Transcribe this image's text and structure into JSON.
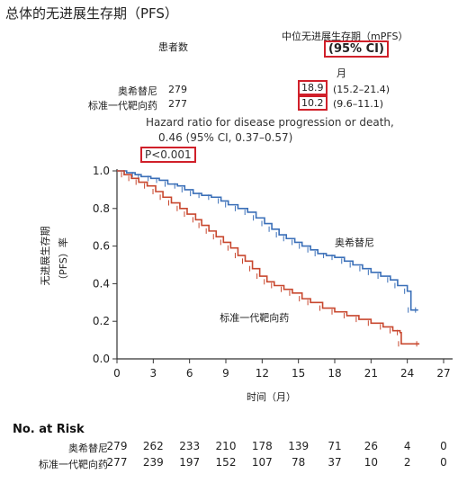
{
  "title": "总体的无进展生存期（PFS）",
  "header": {
    "patients_label": "患者数",
    "median_label": "中位无进展生存期（mPFS）",
    "ci_label": "(95% CI)",
    "month_unit": "月"
  },
  "arms": [
    {
      "name": "奥希替尼",
      "n": "279",
      "median": "18.9",
      "ci": "(15.2–21.4)"
    },
    {
      "name": "标准一代靶向药",
      "n": "277",
      "median": "10.2",
      "ci": "(9.6–11.1)"
    }
  ],
  "hazard": {
    "line1": "Hazard ratio for disease progression or death,",
    "line2": "0.46 (95% CI, 0.37–0.57)",
    "p_value": "P<0.001"
  },
  "chart_data": {
    "type": "line",
    "xlabel": "时间（月）",
    "ylabel_line1": "无进展生存期",
    "ylabel_line2": "（PFS）率",
    "xlim": [
      0,
      27
    ],
    "ylim": [
      0.0,
      1.0
    ],
    "x_ticks": [
      "0",
      "3",
      "6",
      "9",
      "12",
      "15",
      "18",
      "21",
      "24",
      "27"
    ],
    "y_ticks": [
      "0.0",
      "0.2",
      "0.4",
      "0.6",
      "0.8",
      "1.0"
    ],
    "series": [
      {
        "name": "奥希替尼",
        "color": "#3a6fb8",
        "points": [
          [
            0,
            1.0
          ],
          [
            0.8,
            0.99
          ],
          [
            1.5,
            0.98
          ],
          [
            2,
            0.97
          ],
          [
            2.8,
            0.96
          ],
          [
            3.5,
            0.95
          ],
          [
            4.2,
            0.93
          ],
          [
            5,
            0.92
          ],
          [
            5.6,
            0.9
          ],
          [
            6.3,
            0.88
          ],
          [
            7,
            0.87
          ],
          [
            7.8,
            0.86
          ],
          [
            8.6,
            0.84
          ],
          [
            9.2,
            0.82
          ],
          [
            10,
            0.8
          ],
          [
            10.8,
            0.78
          ],
          [
            11.5,
            0.75
          ],
          [
            12.2,
            0.72
          ],
          [
            12.8,
            0.69
          ],
          [
            13.4,
            0.66
          ],
          [
            14,
            0.64
          ],
          [
            14.7,
            0.62
          ],
          [
            15.3,
            0.6
          ],
          [
            16,
            0.58
          ],
          [
            16.6,
            0.56
          ],
          [
            17.3,
            0.55
          ],
          [
            18,
            0.54
          ],
          [
            18.8,
            0.52
          ],
          [
            19.5,
            0.5
          ],
          [
            20.3,
            0.48
          ],
          [
            21,
            0.46
          ],
          [
            21.8,
            0.44
          ],
          [
            22.6,
            0.42
          ],
          [
            23.2,
            0.39
          ],
          [
            24,
            0.36
          ],
          [
            24.3,
            0.26
          ],
          [
            24.9,
            0.26
          ]
        ]
      },
      {
        "name": "标准一代靶向药",
        "color": "#c8472e",
        "points": [
          [
            0,
            1.0
          ],
          [
            0.6,
            0.98
          ],
          [
            1.2,
            0.96
          ],
          [
            1.8,
            0.94
          ],
          [
            2.5,
            0.92
          ],
          [
            3.2,
            0.89
          ],
          [
            3.8,
            0.86
          ],
          [
            4.5,
            0.83
          ],
          [
            5.2,
            0.8
          ],
          [
            5.8,
            0.77
          ],
          [
            6.5,
            0.74
          ],
          [
            7,
            0.71
          ],
          [
            7.6,
            0.68
          ],
          [
            8.2,
            0.65
          ],
          [
            8.8,
            0.62
          ],
          [
            9.4,
            0.59
          ],
          [
            10,
            0.55
          ],
          [
            10.6,
            0.52
          ],
          [
            11.2,
            0.48
          ],
          [
            11.8,
            0.44
          ],
          [
            12.4,
            0.41
          ],
          [
            13,
            0.39
          ],
          [
            13.8,
            0.37
          ],
          [
            14.5,
            0.35
          ],
          [
            15.3,
            0.32
          ],
          [
            16,
            0.3
          ],
          [
            17,
            0.27
          ],
          [
            18,
            0.25
          ],
          [
            19,
            0.23
          ],
          [
            20,
            0.21
          ],
          [
            21,
            0.19
          ],
          [
            22,
            0.17
          ],
          [
            22.8,
            0.15
          ],
          [
            23.4,
            0.14
          ],
          [
            23.5,
            0.08
          ],
          [
            25,
            0.08
          ]
        ]
      }
    ],
    "annotations": [
      {
        "text": "奥希替尼",
        "x": 18.0,
        "y": 0.6
      },
      {
        "text": "标准一代靶向药",
        "x": 8.5,
        "y": 0.2
      }
    ]
  },
  "risk_table": {
    "title": "No. at Risk",
    "rows": [
      {
        "label": "奥希替尼",
        "values": [
          "279",
          "262",
          "233",
          "210",
          "178",
          "139",
          "71",
          "26",
          "4",
          "0"
        ]
      },
      {
        "label": "标准一代靶向药",
        "values": [
          "277",
          "239",
          "197",
          "152",
          "107",
          "78",
          "37",
          "10",
          "2",
          "0"
        ]
      }
    ]
  }
}
